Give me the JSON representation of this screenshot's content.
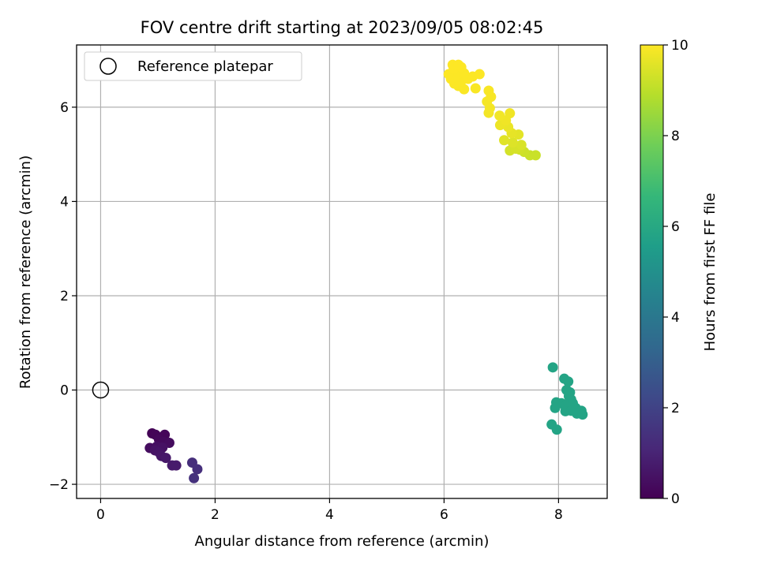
{
  "chart_data": {
    "type": "scatter",
    "title": "FOV centre drift starting at 2023/09/05 08:02:45",
    "xlabel": "Angular distance from reference (arcmin)",
    "ylabel": "Rotation from reference (arcmin)",
    "xlim": [
      -0.42,
      8.85
    ],
    "ylim": [
      -2.3,
      7.32
    ],
    "xticks": [
      0,
      2,
      4,
      6,
      8
    ],
    "yticks": [
      -2,
      0,
      2,
      4,
      6
    ],
    "grid": true,
    "legend": {
      "placement": "top-left",
      "entries": [
        "Reference platepar"
      ]
    },
    "reference_point": {
      "x": 0,
      "y": 0
    },
    "colorbar": {
      "label": "Hours from first FF file",
      "range": [
        0,
        10
      ],
      "ticks": [
        0,
        2,
        4,
        6,
        8,
        10
      ],
      "colormap": [
        "#440154",
        "#482878",
        "#3e4989",
        "#31688e",
        "#26828e",
        "#1f9e89",
        "#35b779",
        "#6ece58",
        "#b5de2b",
        "#fde725"
      ]
    },
    "points": [
      {
        "x": 0.9,
        "y": -0.92,
        "t": 0.05
      },
      {
        "x": 0.96,
        "y": -0.95,
        "t": 0.1
      },
      {
        "x": 1.12,
        "y": -0.95,
        "t": 0.15
      },
      {
        "x": 1.02,
        "y": -1.05,
        "t": 0.2
      },
      {
        "x": 1.1,
        "y": -1.1,
        "t": 0.25
      },
      {
        "x": 1.2,
        "y": -1.12,
        "t": 0.3
      },
      {
        "x": 0.86,
        "y": -1.23,
        "t": 0.35
      },
      {
        "x": 0.98,
        "y": -1.2,
        "t": 0.4
      },
      {
        "x": 1.08,
        "y": -1.22,
        "t": 0.45
      },
      {
        "x": 0.95,
        "y": -1.28,
        "t": 0.5
      },
      {
        "x": 1.02,
        "y": -1.32,
        "t": 0.55
      },
      {
        "x": 1.06,
        "y": -1.4,
        "t": 0.6
      },
      {
        "x": 1.14,
        "y": -1.44,
        "t": 0.65
      },
      {
        "x": 1.25,
        "y": -1.6,
        "t": 0.7
      },
      {
        "x": 1.32,
        "y": -1.6,
        "t": 0.75
      },
      {
        "x": 1.6,
        "y": -1.54,
        "t": 1.3
      },
      {
        "x": 1.69,
        "y": -1.68,
        "t": 1.35
      },
      {
        "x": 1.63,
        "y": -1.87,
        "t": 1.4
      },
      {
        "x": 7.9,
        "y": 0.48,
        "t": 5.8
      },
      {
        "x": 8.1,
        "y": 0.24,
        "t": 5.8
      },
      {
        "x": 8.17,
        "y": 0.18,
        "t": 5.8
      },
      {
        "x": 8.14,
        "y": 0.0,
        "t": 5.8
      },
      {
        "x": 8.2,
        "y": -0.05,
        "t": 5.8
      },
      {
        "x": 8.18,
        "y": -0.13,
        "t": 5.8
      },
      {
        "x": 8.22,
        "y": -0.2,
        "t": 5.8
      },
      {
        "x": 7.96,
        "y": -0.26,
        "t": 5.8
      },
      {
        "x": 8.05,
        "y": -0.28,
        "t": 5.8
      },
      {
        "x": 8.15,
        "y": -0.3,
        "t": 5.8
      },
      {
        "x": 8.25,
        "y": -0.28,
        "t": 5.8
      },
      {
        "x": 8.12,
        "y": -0.35,
        "t": 5.8
      },
      {
        "x": 7.94,
        "y": -0.38,
        "t": 5.8
      },
      {
        "x": 8.3,
        "y": -0.38,
        "t": 5.8
      },
      {
        "x": 8.12,
        "y": -0.45,
        "t": 5.8
      },
      {
        "x": 8.22,
        "y": -0.44,
        "t": 5.8
      },
      {
        "x": 8.4,
        "y": -0.44,
        "t": 5.8
      },
      {
        "x": 8.32,
        "y": -0.5,
        "t": 5.8
      },
      {
        "x": 8.42,
        "y": -0.52,
        "t": 5.8
      },
      {
        "x": 7.88,
        "y": -0.73,
        "t": 5.8
      },
      {
        "x": 7.97,
        "y": -0.84,
        "t": 5.8
      },
      {
        "x": 7.6,
        "y": 4.98,
        "t": 9.2
      },
      {
        "x": 7.5,
        "y": 4.98,
        "t": 9.2
      },
      {
        "x": 7.4,
        "y": 5.05,
        "t": 9.25
      },
      {
        "x": 7.32,
        "y": 5.1,
        "t": 9.3
      },
      {
        "x": 7.15,
        "y": 5.08,
        "t": 9.35
      },
      {
        "x": 7.25,
        "y": 5.12,
        "t": 9.4
      },
      {
        "x": 7.35,
        "y": 5.2,
        "t": 9.45
      },
      {
        "x": 7.2,
        "y": 5.25,
        "t": 9.5
      },
      {
        "x": 7.05,
        "y": 5.3,
        "t": 9.55
      },
      {
        "x": 7.3,
        "y": 5.42,
        "t": 9.6
      },
      {
        "x": 7.18,
        "y": 5.45,
        "t": 9.65
      },
      {
        "x": 7.12,
        "y": 5.58,
        "t": 9.7
      },
      {
        "x": 6.98,
        "y": 5.62,
        "t": 9.75
      },
      {
        "x": 7.08,
        "y": 5.72,
        "t": 9.8
      },
      {
        "x": 7.15,
        "y": 5.87,
        "t": 9.8
      },
      {
        "x": 6.97,
        "y": 5.82,
        "t": 9.82
      },
      {
        "x": 6.78,
        "y": 5.88,
        "t": 9.84
      },
      {
        "x": 6.8,
        "y": 5.98,
        "t": 9.86
      },
      {
        "x": 6.75,
        "y": 6.12,
        "t": 9.88
      },
      {
        "x": 6.82,
        "y": 6.22,
        "t": 9.9
      },
      {
        "x": 6.78,
        "y": 6.35,
        "t": 9.92
      },
      {
        "x": 6.55,
        "y": 6.4,
        "t": 9.94
      },
      {
        "x": 6.35,
        "y": 6.38,
        "t": 9.95
      },
      {
        "x": 6.25,
        "y": 6.45,
        "t": 9.96
      },
      {
        "x": 6.18,
        "y": 6.5,
        "t": 9.97
      },
      {
        "x": 6.3,
        "y": 6.55,
        "t": 9.97
      },
      {
        "x": 6.42,
        "y": 6.6,
        "t": 9.98
      },
      {
        "x": 6.12,
        "y": 6.6,
        "t": 9.98
      },
      {
        "x": 6.22,
        "y": 6.68,
        "t": 9.98
      },
      {
        "x": 6.08,
        "y": 6.7,
        "t": 9.99
      },
      {
        "x": 6.5,
        "y": 6.65,
        "t": 9.99
      },
      {
        "x": 6.62,
        "y": 6.7,
        "t": 9.99
      },
      {
        "x": 6.35,
        "y": 6.72,
        "t": 9.99
      },
      {
        "x": 6.17,
        "y": 6.82,
        "t": 10.0
      },
      {
        "x": 6.3,
        "y": 6.85,
        "t": 10.0
      },
      {
        "x": 6.15,
        "y": 6.9,
        "t": 10.0
      },
      {
        "x": 6.25,
        "y": 6.9,
        "t": 10.0
      }
    ]
  }
}
